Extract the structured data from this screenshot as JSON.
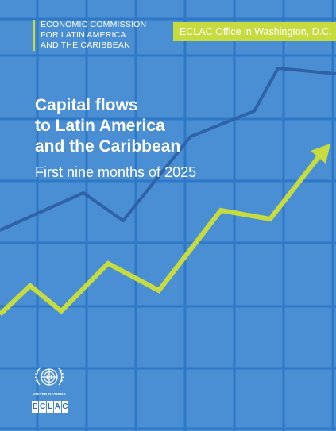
{
  "org": {
    "lines": [
      "ECONOMIC COMMISSION",
      "FOR LATIN AMERICA",
      "AND THE CARIBBEAN"
    ]
  },
  "office": {
    "label": "ECLAC Office in Washington, D.C."
  },
  "title": {
    "lines": [
      "Capital flows",
      "to Latin America",
      "and the Caribbean"
    ],
    "subtitle": "First nine months of 2025"
  },
  "logos": {
    "un_label": "UNITED NATIONS",
    "eclac_letters": [
      "E",
      "C",
      "L",
      "A",
      "C"
    ]
  },
  "colors": {
    "background": "#4a8ed4",
    "grid": "#2f78c6",
    "accent": "#c6dc3e",
    "dark_line": "#2f62a6"
  },
  "icons": [
    "un-emblem-icon",
    "arrow-head-icon"
  ]
}
